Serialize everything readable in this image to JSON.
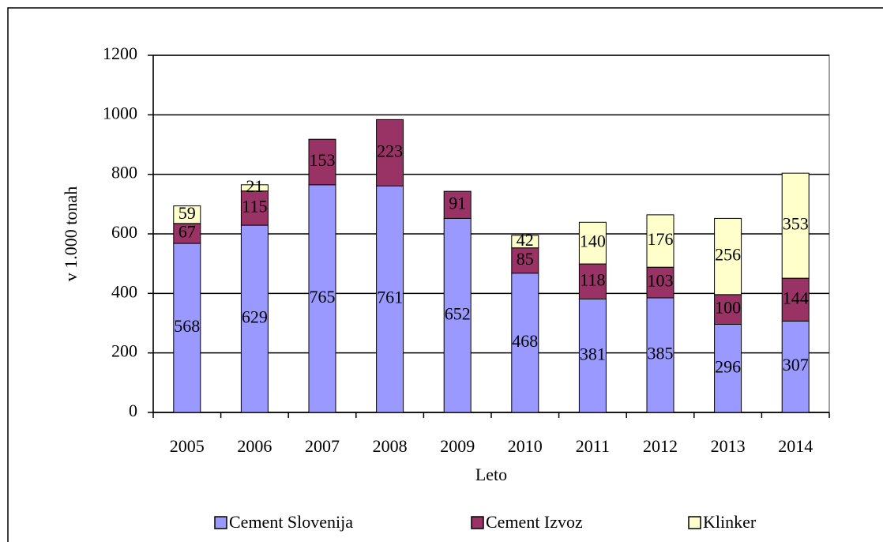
{
  "chart_data": {
    "type": "bar",
    "stacked": true,
    "y_label": "v 1.000 tonah",
    "x_label": "Leto",
    "categories": [
      "2005",
      "2006",
      "2007",
      "2008",
      "2009",
      "2010",
      "2011",
      "2012",
      "2013",
      "2014"
    ],
    "series": [
      {
        "name": "Cement Slovenija",
        "color": "#9999ff",
        "values": [
          568,
          629,
          765,
          761,
          652,
          468,
          381,
          385,
          296,
          307
        ]
      },
      {
        "name": "Cement Izvoz",
        "color": "#993366",
        "values": [
          67,
          115,
          153,
          223,
          91,
          85,
          118,
          103,
          100,
          144
        ]
      },
      {
        "name": "Klinker",
        "color": "#ffffcc",
        "values": [
          59,
          21,
          null,
          null,
          null,
          42,
          140,
          176,
          256,
          353
        ]
      }
    ],
    "ylim": [
      0,
      1200
    ],
    "yticks": [
      0,
      200,
      400,
      600,
      800,
      1000,
      1200
    ],
    "grid": true,
    "legend": "bottom"
  }
}
